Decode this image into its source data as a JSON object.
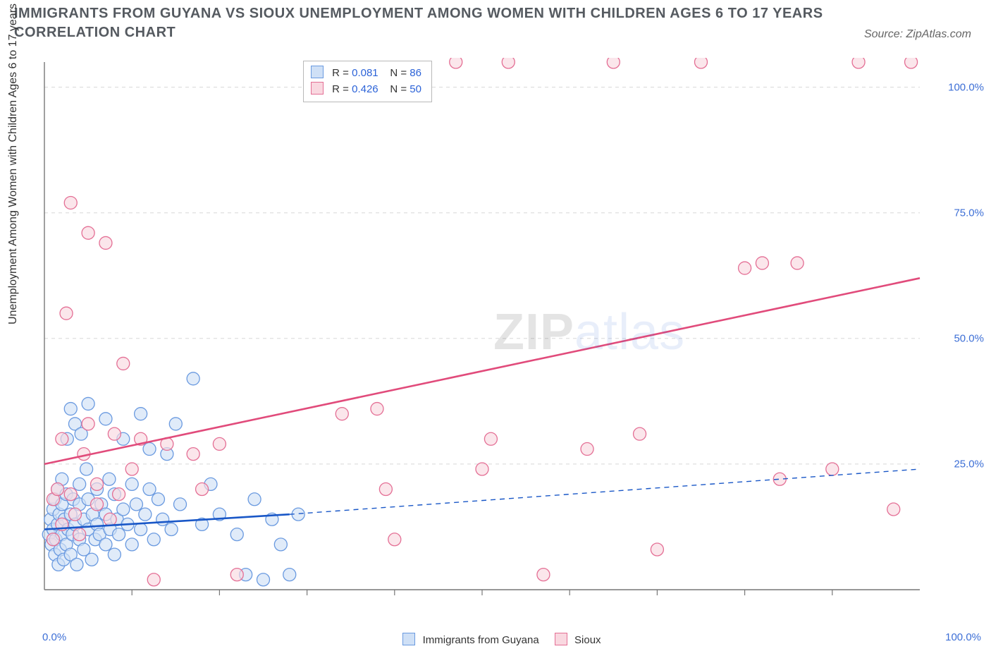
{
  "title": "IMMIGRANTS FROM GUYANA VS SIOUX UNEMPLOYMENT AMONG WOMEN WITH CHILDREN AGES 6 TO 17 YEARS CORRELATION CHART",
  "source": "Source: ZipAtlas.com",
  "watermark": {
    "bold": "ZIP",
    "light": "atlas"
  },
  "ylabel": "Unemployment Among Women with Children Ages 6 to 17 years",
  "chart": {
    "type": "scatter-with-trend",
    "xlim": [
      0,
      100
    ],
    "ylim": [
      0,
      105
    ],
    "yticks": [
      {
        "v": 25,
        "label": "25.0%"
      },
      {
        "v": 50,
        "label": "50.0%"
      },
      {
        "v": 75,
        "label": "75.0%"
      },
      {
        "v": 100,
        "label": "100.0%"
      }
    ],
    "xticks_minor": [
      10,
      20,
      30,
      40,
      50,
      60,
      70,
      80,
      90
    ],
    "xtick0": "0.0%",
    "xtick100": "100.0%",
    "grid_color": "#d8d8d8",
    "axis_color": "#777777",
    "background": "#ffffff",
    "marker_radius": 9,
    "marker_stroke_width": 1.3,
    "series": [
      {
        "name": "Immigrants from Guyana",
        "fill": "#cfe0f6",
        "stroke": "#6a9ae0",
        "R": "0.081",
        "N": "86",
        "trend": {
          "x1": 0,
          "y1": 12,
          "x2": 28,
          "y2": 15,
          "color": "#1957c7",
          "width": 2.6,
          "dash_x2": 100,
          "dash_y2": 24
        },
        "points": [
          [
            0.5,
            11
          ],
          [
            0.7,
            14
          ],
          [
            0.8,
            9
          ],
          [
            1,
            12
          ],
          [
            1,
            16
          ],
          [
            1.2,
            7
          ],
          [
            1.2,
            18
          ],
          [
            1.3,
            10
          ],
          [
            1.5,
            20
          ],
          [
            1.5,
            13
          ],
          [
            1.6,
            5
          ],
          [
            1.7,
            15
          ],
          [
            1.8,
            8
          ],
          [
            2,
            22
          ],
          [
            2,
            11
          ],
          [
            2,
            17
          ],
          [
            2.2,
            6
          ],
          [
            2.3,
            14
          ],
          [
            2.5,
            19
          ],
          [
            2.5,
            9
          ],
          [
            2.6,
            30
          ],
          [
            2.7,
            12
          ],
          [
            3,
            36
          ],
          [
            3,
            15
          ],
          [
            3,
            7
          ],
          [
            3.2,
            11
          ],
          [
            3.3,
            18
          ],
          [
            3.5,
            33
          ],
          [
            3.5,
            13
          ],
          [
            3.7,
            5
          ],
          [
            4,
            21
          ],
          [
            4,
            10
          ],
          [
            4,
            17
          ],
          [
            4.2,
            31
          ],
          [
            4.5,
            14
          ],
          [
            4.5,
            8
          ],
          [
            4.8,
            24
          ],
          [
            5,
            37
          ],
          [
            5,
            12
          ],
          [
            5,
            18
          ],
          [
            5.4,
            6
          ],
          [
            5.5,
            15
          ],
          [
            5.8,
            10
          ],
          [
            6,
            20
          ],
          [
            6,
            13
          ],
          [
            6.3,
            11
          ],
          [
            6.5,
            17
          ],
          [
            7,
            34
          ],
          [
            7,
            9
          ],
          [
            7,
            15
          ],
          [
            7.4,
            22
          ],
          [
            7.5,
            12
          ],
          [
            8,
            19
          ],
          [
            8,
            7
          ],
          [
            8.3,
            14
          ],
          [
            8.5,
            11
          ],
          [
            9,
            30
          ],
          [
            9,
            16
          ],
          [
            9.5,
            13
          ],
          [
            10,
            21
          ],
          [
            10,
            9
          ],
          [
            10.5,
            17
          ],
          [
            11,
            35
          ],
          [
            11,
            12
          ],
          [
            11.5,
            15
          ],
          [
            12,
            20
          ],
          [
            12,
            28
          ],
          [
            12.5,
            10
          ],
          [
            13,
            18
          ],
          [
            13.5,
            14
          ],
          [
            14,
            27
          ],
          [
            14.5,
            12
          ],
          [
            15,
            33
          ],
          [
            15.5,
            17
          ],
          [
            17,
            42
          ],
          [
            18,
            13
          ],
          [
            19,
            21
          ],
          [
            20,
            15
          ],
          [
            22,
            11
          ],
          [
            23,
            3
          ],
          [
            24,
            18
          ],
          [
            25,
            2
          ],
          [
            26,
            14
          ],
          [
            27,
            9
          ],
          [
            28,
            3
          ],
          [
            29,
            15
          ]
        ]
      },
      {
        "name": "Sioux",
        "fill": "#f9d8e0",
        "stroke": "#e46f95",
        "R": "0.426",
        "N": "50",
        "trend": {
          "x1": 0,
          "y1": 25,
          "x2": 100,
          "y2": 62,
          "color": "#e14b7b",
          "width": 2.6
        },
        "points": [
          [
            1,
            10
          ],
          [
            1,
            18
          ],
          [
            1.5,
            20
          ],
          [
            2,
            13
          ],
          [
            2,
            30
          ],
          [
            2.5,
            55
          ],
          [
            3,
            19
          ],
          [
            3,
            77
          ],
          [
            3.5,
            15
          ],
          [
            4,
            11
          ],
          [
            4.5,
            27
          ],
          [
            5,
            33
          ],
          [
            5,
            71
          ],
          [
            6,
            21
          ],
          [
            6,
            17
          ],
          [
            7,
            69
          ],
          [
            7.5,
            14
          ],
          [
            8,
            31
          ],
          [
            8.5,
            19
          ],
          [
            9,
            45
          ],
          [
            10,
            24
          ],
          [
            11,
            30
          ],
          [
            12.5,
            2
          ],
          [
            14,
            29
          ],
          [
            17,
            27
          ],
          [
            18,
            20
          ],
          [
            20,
            29
          ],
          [
            22,
            3
          ],
          [
            34,
            35
          ],
          [
            38,
            36
          ],
          [
            39,
            20
          ],
          [
            40,
            10
          ],
          [
            47,
            105
          ],
          [
            50,
            24
          ],
          [
            51,
            30
          ],
          [
            53,
            105
          ],
          [
            57,
            3
          ],
          [
            62,
            28
          ],
          [
            65,
            105
          ],
          [
            68,
            31
          ],
          [
            70,
            8
          ],
          [
            75,
            105
          ],
          [
            80,
            64
          ],
          [
            82,
            65
          ],
          [
            84,
            22
          ],
          [
            86,
            65
          ],
          [
            90,
            24
          ],
          [
            93,
            105
          ],
          [
            97,
            16
          ],
          [
            99,
            105
          ]
        ]
      }
    ]
  },
  "legend_bottom": [
    {
      "label": "Immigrants from Guyana",
      "fill": "#cfe0f6",
      "stroke": "#6a9ae0"
    },
    {
      "label": "Sioux",
      "fill": "#f9d8e0",
      "stroke": "#e46f95"
    }
  ]
}
